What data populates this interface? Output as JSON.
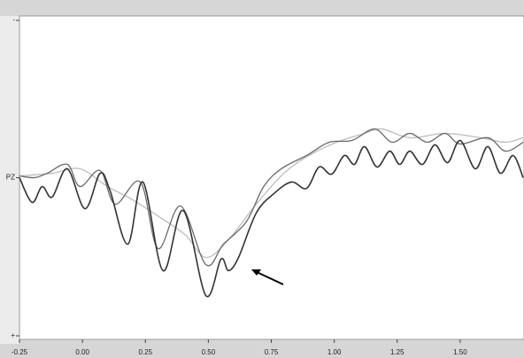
{
  "chart_data": {
    "type": "line",
    "xlim": [
      -0.25,
      1.75
    ],
    "xticks": [
      {
        "value": -0.25,
        "label": "-0.25"
      },
      {
        "value": 0,
        "label": "0.00"
      },
      {
        "value": 0.25,
        "label": "0.25"
      },
      {
        "value": 0.5,
        "label": "0.50"
      },
      {
        "value": 0.75,
        "label": "0.75"
      },
      {
        "value": 1,
        "label": "1.00"
      },
      {
        "value": 1.25,
        "label": "1.25"
      },
      {
        "value": 1.5,
        "label": "1.50"
      }
    ],
    "ylim": [
      -10,
      10
    ],
    "y_inverted": true,
    "yticks": [
      {
        "value": -10,
        "label": "-"
      },
      {
        "value": 0,
        "label": "PZ"
      },
      {
        "value": 10,
        "label": "+"
      }
    ],
    "series": [
      {
        "color": "#bdbdbd",
        "x": [
          -0.25,
          -0.12,
          -0.01,
          0.1,
          0.2,
          0.31,
          0.41,
          0.49,
          0.58,
          0.69,
          0.8,
          0.9,
          1.01,
          1.12,
          1.19,
          1.3,
          1.44,
          1.58,
          1.68,
          1.75
        ],
        "values": [
          -0.11,
          -0.27,
          -0.55,
          0.55,
          1.37,
          2.47,
          3.56,
          4.93,
          3.84,
          1.64,
          -0.27,
          -1.37,
          -2.19,
          -2.74,
          -3.01,
          -2.47,
          -2.74,
          -2.47,
          -2.19,
          -2.47
        ]
      },
      {
        "color": "#6a6a6a",
        "x": [
          -0.25,
          -0.19,
          -0.14,
          -0.06,
          -0.01,
          0.07,
          0.13,
          0.23,
          0.3,
          0.39,
          0.49,
          0.56,
          0.65,
          0.72,
          0.79,
          0.89,
          0.98,
          1.07,
          1.16,
          1.23,
          1.3,
          1.37,
          1.44,
          1.5,
          1.61,
          1.68,
          1.75
        ],
        "values": [
          -0.11,
          0,
          -0.27,
          -0.82,
          0.55,
          -0.44,
          1.64,
          0.27,
          4.38,
          1.75,
          5.37,
          4.11,
          2.74,
          0.55,
          -0.55,
          -1.37,
          -2.19,
          -2.3,
          -3.01,
          -2.19,
          -2.74,
          -2.19,
          -2.74,
          -2.08,
          -2.47,
          -1.64,
          -2.19
        ]
      },
      {
        "color": "#333333",
        "x": [
          -0.25,
          -0.2,
          -0.16,
          -0.12,
          -0.06,
          0.01,
          0.07,
          0.11,
          0.18,
          0.24,
          0.32,
          0.4,
          0.49,
          0.55,
          0.58,
          0.62,
          0.69,
          0.76,
          0.83,
          0.89,
          0.94,
          0.99,
          1.04,
          1.08,
          1.12,
          1.17,
          1.22,
          1.26,
          1.3,
          1.35,
          1.4,
          1.45,
          1.5,
          1.56,
          1.61,
          1.66,
          1.71,
          1.75
        ],
        "values": [
          0,
          1.53,
          0.55,
          1.2,
          -0.55,
          1.92,
          -0.27,
          0.82,
          4.11,
          0.27,
          5.75,
          2.03,
          7.29,
          5.04,
          5.75,
          4.93,
          2.19,
          0.99,
          0.27,
          0.66,
          -0.66,
          -0.22,
          -1.37,
          -0.82,
          -1.92,
          -0.66,
          -1.64,
          -0.82,
          -1.64,
          -0.82,
          -2.03,
          -0.93,
          -2.3,
          -0.55,
          -1.92,
          -0.27,
          -1.37,
          0
        ]
      }
    ]
  }
}
